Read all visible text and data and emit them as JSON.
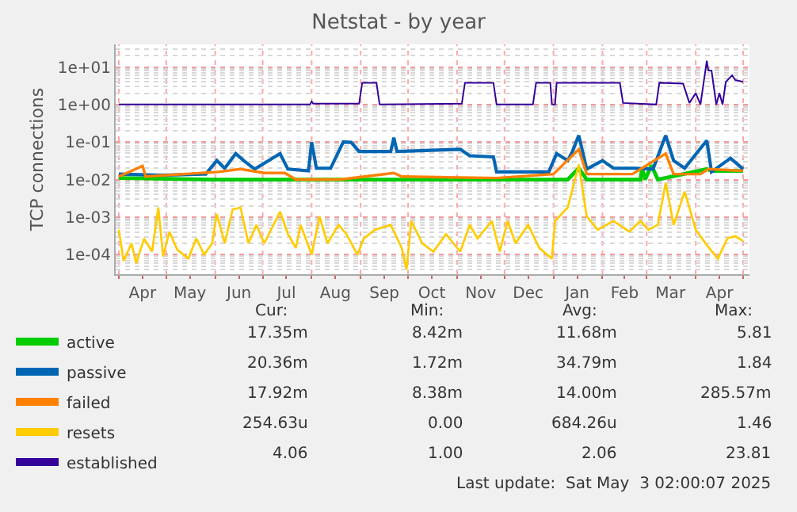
{
  "chart_data": {
    "type": "line",
    "title": "Netstat - by year",
    "ylabel": "TCP connections",
    "log": "y",
    "grid": true,
    "legend": "bottom",
    "marker": "none",
    "line_style": "solid",
    "xlim": [
      "2024-03-30",
      "2025-05-05"
    ],
    "xticks": [
      {
        "value": "2024-04-01",
        "label": null
      },
      {
        "value": "2024-04-16",
        "label": "Apr"
      },
      {
        "value": "2024-05-01",
        "label": null
      },
      {
        "value": "2024-05-16",
        "label": "May"
      },
      {
        "value": "2024-06-01",
        "label": null
      },
      {
        "value": "2024-06-16",
        "label": "Jun"
      },
      {
        "value": "2024-07-01",
        "label": null
      },
      {
        "value": "2024-07-16",
        "label": "Jul"
      },
      {
        "value": "2024-08-01",
        "label": null
      },
      {
        "value": "2024-08-16",
        "label": "Aug"
      },
      {
        "value": "2024-09-01",
        "label": null
      },
      {
        "value": "2024-09-16",
        "label": "Sep"
      },
      {
        "value": "2024-10-01",
        "label": null
      },
      {
        "value": "2024-10-16",
        "label": "Oct"
      },
      {
        "value": "2024-11-01",
        "label": null
      },
      {
        "value": "2024-11-16",
        "label": "Nov"
      },
      {
        "value": "2024-12-01",
        "label": null
      },
      {
        "value": "2024-12-16",
        "label": "Dec"
      },
      {
        "value": "2025-01-01",
        "label": null
      },
      {
        "value": "2025-01-16",
        "label": "Jan"
      },
      {
        "value": "2025-02-01",
        "label": null
      },
      {
        "value": "2025-02-15",
        "label": "Feb"
      },
      {
        "value": "2025-03-01",
        "label": null
      },
      {
        "value": "2025-03-16",
        "label": "Mar"
      },
      {
        "value": "2025-04-01",
        "label": null
      },
      {
        "value": "2025-04-16",
        "label": "Apr"
      },
      {
        "value": "2025-05-01",
        "label": null
      }
    ],
    "ylim": [
      3e-05,
      40
    ],
    "yticks": [
      {
        "value": 0.0001,
        "label": "1e-04"
      },
      {
        "value": 0.001,
        "label": "1e-03"
      },
      {
        "value": 0.01,
        "label": "1e-02"
      },
      {
        "value": 0.1,
        "label": "1e-01"
      },
      {
        "value": 1,
        "label": "1e+00"
      },
      {
        "value": 10,
        "label": "1e+01"
      }
    ],
    "series": [
      {
        "name": "active",
        "color": "#00cc00",
        "x": [
          "2024-04-01",
          "2024-05-30",
          "2025-01-10",
          "2025-01-17",
          "2025-01-22",
          "2025-02-25",
          "2025-02-26",
          "2025-02-28",
          "2025-03-04",
          "2025-03-08",
          "2025-04-08",
          "2025-04-11",
          "2025-05-01"
        ],
        "values": [
          0.011,
          0.01,
          0.01,
          0.02,
          0.01,
          0.01,
          0.02,
          0.01,
          0.024,
          0.01,
          0.019,
          0.017,
          0.017
        ]
      },
      {
        "name": "passive",
        "color": "#0066b3",
        "x": [
          "2024-04-01",
          "2024-04-27",
          "2024-05-26",
          "2024-06-02",
          "2024-06-07",
          "2024-06-14",
          "2024-06-19",
          "2024-06-26",
          "2024-07-12",
          "2024-07-17",
          "2024-07-30",
          "2024-08-01",
          "2024-08-04",
          "2024-08-13",
          "2024-08-21",
          "2024-08-26",
          "2024-08-31",
          "2024-09-20",
          "2024-09-22",
          "2024-09-24",
          "2024-11-03",
          "2024-11-09",
          "2024-11-24",
          "2024-11-26",
          "2024-12-29",
          "2025-01-03",
          "2025-01-10",
          "2025-01-13",
          "2025-01-17",
          "2025-01-22",
          "2025-02-01",
          "2025-02-08",
          "2025-02-21",
          "2025-03-05",
          "2025-03-13",
          "2025-03-18",
          "2025-03-25",
          "2025-04-08",
          "2025-04-11",
          "2025-04-23",
          "2025-05-01"
        ],
        "values": [
          0.014,
          0.013,
          0.014,
          0.032,
          0.02,
          0.049,
          0.032,
          0.019,
          0.049,
          0.019,
          0.017,
          0.1,
          0.02,
          0.02,
          0.1,
          0.098,
          0.056,
          0.056,
          0.13,
          0.056,
          0.064,
          0.043,
          0.04,
          0.016,
          0.016,
          0.049,
          0.032,
          0.056,
          0.15,
          0.019,
          0.032,
          0.02,
          0.02,
          0.019,
          0.15,
          0.032,
          0.02,
          0.11,
          0.016,
          0.037,
          0.019
        ]
      },
      {
        "name": "failed",
        "color": "#ff8000",
        "x": [
          "2024-04-01",
          "2024-04-16",
          "2024-04-18",
          "2024-06-03",
          "2024-06-17",
          "2024-07-02",
          "2024-07-15",
          "2024-07-22",
          "2024-08-19",
          "2024-09-22",
          "2024-09-27",
          "2024-11-26",
          "2025-01-01",
          "2025-01-17",
          "2025-01-22",
          "2025-02-20",
          "2025-03-13",
          "2025-03-18",
          "2025-04-04",
          "2025-04-09",
          "2025-05-01"
        ],
        "values": [
          0.012,
          0.023,
          0.012,
          0.016,
          0.019,
          0.015,
          0.015,
          0.01,
          0.01,
          0.015,
          0.012,
          0.011,
          0.014,
          0.064,
          0.014,
          0.014,
          0.049,
          0.014,
          0.014,
          0.019,
          0.017
        ]
      },
      {
        "name": "resets",
        "color": "#ffcc00",
        "x": [
          "2024-04-01",
          "2024-04-04",
          "2024-04-09",
          "2024-04-12",
          "2024-04-17",
          "2024-04-22",
          "2024-04-26",
          "2024-04-29",
          "2024-05-03",
          "2024-05-08",
          "2024-05-15",
          "2024-05-20",
          "2024-05-25",
          "2024-05-30",
          "2024-06-02",
          "2024-06-07",
          "2024-06-12",
          "2024-06-17",
          "2024-06-22",
          "2024-06-27",
          "2024-07-02",
          "2024-07-12",
          "2024-07-17",
          "2024-07-22",
          "2024-07-25",
          "2024-08-01",
          "2024-08-06",
          "2024-08-11",
          "2024-08-18",
          "2024-08-23",
          "2024-08-30",
          "2024-09-03",
          "2024-09-10",
          "2024-09-20",
          "2024-09-27",
          "2024-09-30",
          "2024-10-03",
          "2024-10-10",
          "2024-10-17",
          "2024-10-25",
          "2024-11-03",
          "2024-11-09",
          "2024-11-14",
          "2024-11-23",
          "2024-11-28",
          "2024-12-03",
          "2024-12-08",
          "2024-12-16",
          "2024-12-23",
          "2024-12-31",
          "2025-01-02",
          "2025-01-10",
          "2025-01-17",
          "2025-01-22",
          "2025-01-29",
          "2025-02-08",
          "2025-02-18",
          "2025-02-25",
          "2025-03-02",
          "2025-03-08",
          "2025-03-13",
          "2025-03-18",
          "2025-03-25",
          "2025-04-01",
          "2025-04-08",
          "2025-04-15",
          "2025-04-21",
          "2025-04-26",
          "2025-05-01"
        ],
        "values": [
          0.00046,
          6.8e-05,
          0.0002,
          5.9e-05,
          0.00027,
          0.00012,
          0.0018,
          8.9e-05,
          0.00041,
          0.000135,
          7.8e-05,
          0.00027,
          0.0001,
          0.0002,
          0.0012,
          0.0002,
          0.0016,
          0.0018,
          0.0002,
          0.00062,
          0.0002,
          0.0014,
          0.00035,
          0.00015,
          0.00062,
          0.0001,
          0.00105,
          0.0002,
          0.00062,
          0.00035,
          0.0001,
          0.00027,
          0.00046,
          0.00062,
          0.00015,
          4e-05,
          0.00079,
          0.0002,
          0.00012,
          0.00035,
          0.00012,
          0.00062,
          0.00027,
          0.00079,
          0.00012,
          0.00079,
          0.0002,
          0.00062,
          0.00015,
          7.8e-05,
          0.00079,
          0.0018,
          0.025,
          0.00105,
          0.00046,
          0.00079,
          0.00041,
          0.00079,
          0.00046,
          0.00062,
          0.0083,
          0.00062,
          0.0048,
          0.00046,
          0.00018,
          7.8e-05,
          0.00027,
          0.00031,
          0.00023
        ]
      },
      {
        "name": "established",
        "color": "#330099",
        "x": [
          "2024-04-01",
          "2024-07-31",
          "2024-08-01",
          "2024-08-02",
          "2024-08-31",
          "2024-09-02",
          "2024-09-11",
          "2024-09-13",
          "2024-11-04",
          "2024-11-06",
          "2024-11-24",
          "2024-11-26",
          "2024-12-19",
          "2024-12-21",
          "2024-12-30",
          "2024-12-31",
          "2025-01-02",
          "2025-01-03",
          "2025-02-12",
          "2025-02-14",
          "2025-03-07",
          "2025-03-09",
          "2025-03-24",
          "2025-03-28",
          "2025-04-01",
          "2025-04-04",
          "2025-04-08",
          "2025-04-09",
          "2025-04-11",
          "2025-04-14",
          "2025-04-16",
          "2025-04-18",
          "2025-04-20",
          "2025-04-24",
          "2025-04-26",
          "2025-05-01"
        ],
        "values": [
          1.0,
          1.0,
          1.2,
          1.05,
          1.05,
          3.8,
          3.8,
          1.0,
          1.05,
          3.8,
          3.8,
          1.0,
          1.0,
          3.8,
          3.8,
          1.0,
          1.0,
          3.8,
          3.8,
          1.1,
          1.0,
          3.8,
          3.6,
          1.1,
          2.0,
          1.0,
          14.6,
          8,
          8,
          1.0,
          2.0,
          1.0,
          4.0,
          6.0,
          4.5,
          4.0
        ]
      }
    ],
    "annotations": [
      "Cur:",
      "Min:",
      "Avg:",
      "Max:",
      "17.35m",
      "8.42m",
      "11.68m",
      "5.81",
      "20.36m",
      "1.72m",
      "34.79m",
      "1.84",
      "17.92m",
      "8.38m",
      "14.00m",
      "285.57m",
      "254.63u",
      "0.00",
      "684.26u",
      "1.46",
      "4.06",
      "1.00",
      "2.06",
      "23.81",
      "Last update:  Sat May  3 02:00:07 2025"
    ]
  }
}
